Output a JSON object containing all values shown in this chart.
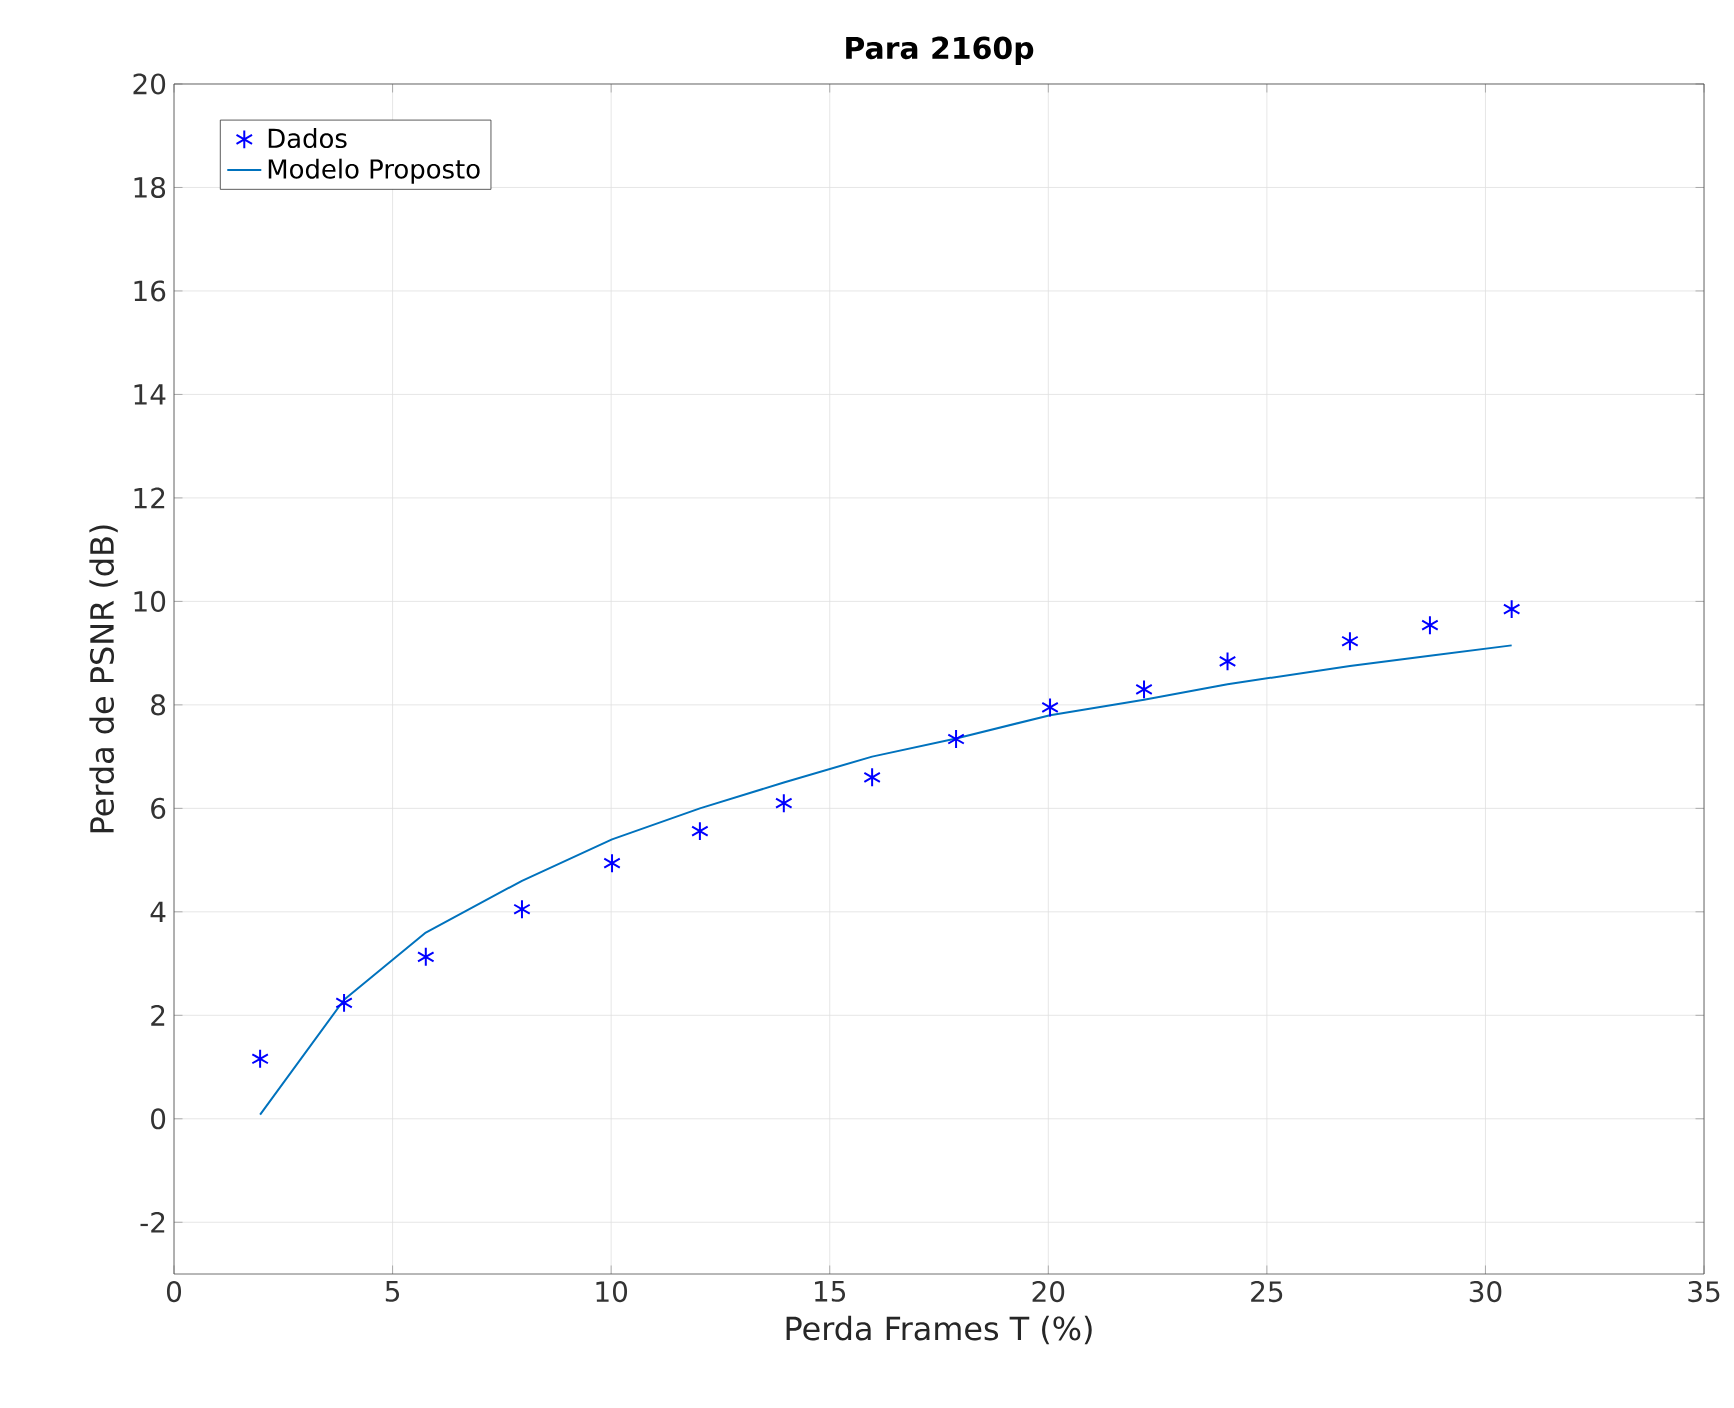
{
  "chart_data": {
    "type": "line",
    "title": "Para 2160p",
    "xlabel": "Perda Frames T (%)",
    "ylabel": "Perda de PSNR (dB)",
    "xlim": [
      0,
      35
    ],
    "ylim": [
      -3,
      20
    ],
    "xticks": [
      0,
      5,
      10,
      15,
      20,
      25,
      30,
      35
    ],
    "yticks": [
      -2,
      0,
      2,
      4,
      6,
      8,
      10,
      12,
      14,
      16,
      18,
      20
    ],
    "grid": true,
    "legend": "top left",
    "series": [
      {
        "name": "Dados",
        "type": "scatter",
        "color": "#0000ff",
        "x": [
          1.97,
          3.89,
          5.76,
          7.96,
          10.02,
          12.03,
          13.95,
          15.97,
          17.89,
          20.04,
          22.19,
          24.1,
          26.9,
          28.73,
          30.6
        ],
        "values": [
          1.16,
          2.24,
          3.13,
          4.05,
          4.94,
          5.56,
          6.1,
          6.6,
          7.34,
          7.95,
          8.3,
          8.84,
          9.23,
          9.54,
          9.85
        ]
      },
      {
        "name": "Modelo Proposto",
        "marker": "none",
        "color": "#0072bd",
        "x": [
          1.97,
          3.89,
          5.76,
          7.96,
          10.02,
          12.03,
          13.95,
          15.97,
          17.89,
          20.04,
          22.19,
          24.1,
          26.9,
          28.73,
          30.6
        ],
        "values": [
          0.08,
          2.3,
          3.6,
          4.6,
          5.4,
          6.0,
          6.5,
          7.0,
          7.35,
          7.8,
          8.1,
          8.4,
          8.75,
          8.95,
          9.15
        ]
      }
    ]
  }
}
